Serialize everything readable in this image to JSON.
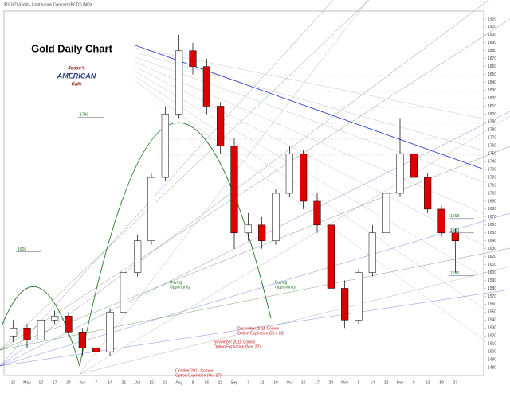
{
  "chart_data": {
    "type": "candlestick",
    "title": "Gold Daily Chart",
    "header": "$GOLD (Gold - Continuous Contract (EOD)) INDX",
    "logo": [
      "Jesse's",
      "AMERICAN",
      "Cafe"
    ],
    "categories": [
      "26",
      "May",
      "10",
      "17",
      "24",
      "Jun",
      "7",
      "14",
      "21",
      "Jul",
      "12",
      "19",
      "Aug",
      "8",
      "16",
      "22",
      "Sep",
      "7",
      "12",
      "19",
      "Oct",
      "10",
      "17",
      "24",
      "Nov",
      "8",
      "14",
      "22",
      "Dec",
      "5",
      "12",
      "19",
      "27"
    ],
    "open": [
      1520,
      1530,
      1515,
      1540,
      1545,
      1525,
      1505,
      1500,
      1550,
      1600,
      1640,
      1720,
      1800,
      1880,
      1860,
      1810,
      1760,
      1650,
      1660,
      1640,
      1700,
      1750,
      1690,
      1660,
      1580,
      1540,
      1600,
      1650,
      1700,
      1750,
      1720,
      1680,
      1650
    ],
    "high": [
      1540,
      1535,
      1545,
      1552,
      1550,
      1530,
      1512,
      1555,
      1605,
      1648,
      1725,
      1810,
      1900,
      1890,
      1870,
      1815,
      1770,
      1675,
      1670,
      1705,
      1760,
      1755,
      1700,
      1665,
      1590,
      1605,
      1660,
      1710,
      1795,
      1755,
      1725,
      1685,
      1655
    ],
    "low": [
      1512,
      1505,
      1508,
      1535,
      1520,
      1495,
      1490,
      1495,
      1545,
      1595,
      1635,
      1715,
      1795,
      1850,
      1800,
      1750,
      1630,
      1640,
      1630,
      1635,
      1695,
      1680,
      1650,
      1565,
      1530,
      1535,
      1595,
      1645,
      1695,
      1715,
      1675,
      1645,
      1600
    ],
    "close": [
      1530,
      1515,
      1540,
      1545,
      1525,
      1505,
      1500,
      1550,
      1600,
      1640,
      1720,
      1800,
      1880,
      1860,
      1810,
      1760,
      1650,
      1660,
      1640,
      1700,
      1750,
      1690,
      1660,
      1580,
      1540,
      1600,
      1650,
      1700,
      1750,
      1720,
      1680,
      1650,
      1640
    ],
    "up_color": "#ffffff",
    "down_color": "#dd0000",
    "ylim": [
      1470,
      1930
    ],
    "yticks": [
      1480,
      1490,
      1500,
      1510,
      1520,
      1530,
      1540,
      1550,
      1560,
      1570,
      1580,
      1590,
      1600,
      1610,
      1620,
      1630,
      1640,
      1650,
      1660,
      1670,
      1680,
      1690,
      1700,
      1710,
      1720,
      1730,
      1740,
      1750,
      1760,
      1770,
      1780,
      1790,
      1800,
      1810,
      1820,
      1830,
      1840,
      1850,
      1860,
      1870,
      1880,
      1890,
      1900,
      1910,
      1920
    ],
    "levels": [
      1796,
      1626,
      1668,
      1650,
      1596
    ],
    "annotations": [
      {
        "lines": [
          "Buying",
          "Opportunity"
        ]
      },
      {
        "lines": [
          "Buying",
          "Opportunity"
        ]
      },
      {
        "lines": [
          "October 2011 Comex",
          "Option Expiration (Oct 27)"
        ]
      },
      {
        "lines": [
          "November 2011 Comex",
          "Option Expiration (Nov 22)"
        ]
      },
      {
        "lines": [
          "December 2011 Comex",
          "Option Expiration (Dec 28)"
        ]
      }
    ]
  }
}
